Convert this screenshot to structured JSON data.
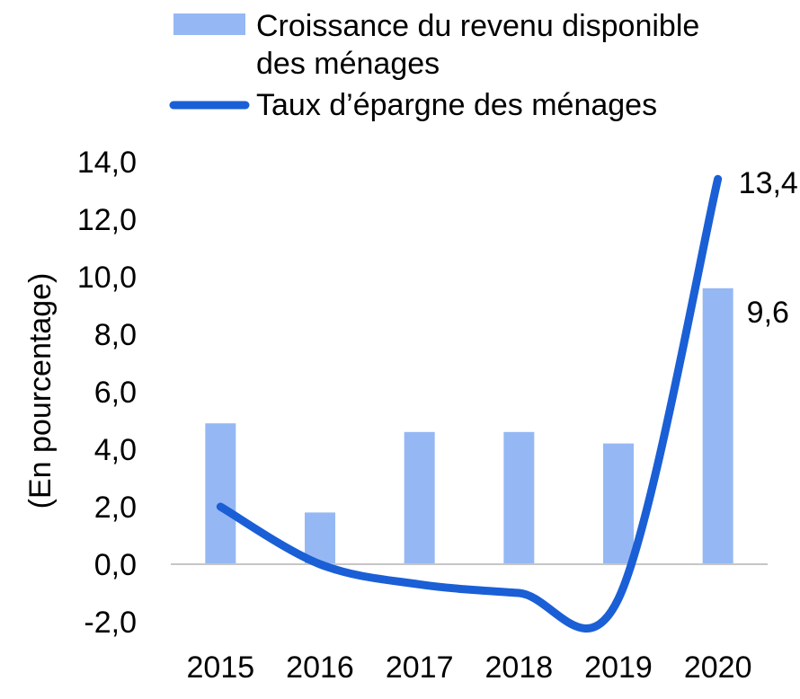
{
  "chart_data": {
    "type": "bar+line",
    "categories": [
      "2015",
      "2016",
      "2017",
      "2018",
      "2019",
      "2020"
    ],
    "ylabel": "(En pourcentage)",
    "ylim": [
      -2,
      14
    ],
    "yticks": [
      "-2,0",
      "0,0",
      "2,0",
      "4,0",
      "6,0",
      "8,0",
      "10,0",
      "12,0",
      "14,0"
    ],
    "series": [
      {
        "name": "Croissance du revenu disponible des ménages",
        "legend_lines": [
          "Croissance du revenu disponible",
          "des ménages"
        ],
        "type": "bar",
        "color": "#95b8f4",
        "values": [
          4.9,
          1.8,
          4.6,
          4.6,
          4.2,
          9.6
        ]
      },
      {
        "name": "Taux d’épargne des ménages",
        "legend_lines": [
          "Taux d’épargne des ménages"
        ],
        "type": "line",
        "color": "#1a5fd6",
        "values": [
          2.0,
          0.0,
          -0.7,
          -1.0,
          -1.2,
          13.4
        ]
      }
    ],
    "annotations": [
      {
        "series": 1,
        "category": "2020",
        "text": "13,4"
      },
      {
        "series": 0,
        "category": "2020",
        "text": "9,6"
      }
    ],
    "legend": "top",
    "grid": false
  }
}
